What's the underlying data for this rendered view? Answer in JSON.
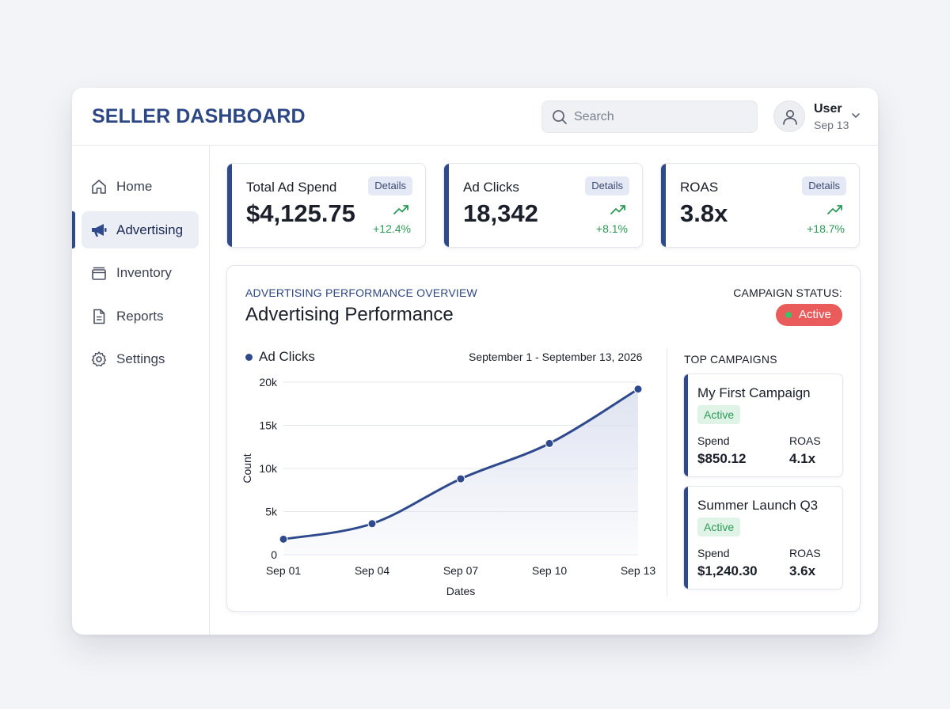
{
  "app": {
    "title": "SELLER DASHBOARD"
  },
  "search": {
    "placeholder": "Search",
    "icon": "search-icon"
  },
  "user": {
    "name": "User",
    "date": "Sep 13",
    "icon": "user-icon"
  },
  "sidebar": {
    "items": [
      {
        "label": "Home",
        "icon": "home-icon",
        "active": false
      },
      {
        "label": "Advertising",
        "icon": "megaphone-icon",
        "active": true
      },
      {
        "label": "Inventory",
        "icon": "inventory-icon",
        "active": false
      },
      {
        "label": "Reports",
        "icon": "document-icon",
        "active": false
      },
      {
        "label": "Settings",
        "icon": "gear-icon",
        "active": false
      }
    ]
  },
  "stats": [
    {
      "label": "Total Ad Spend",
      "value": "$4,125.75",
      "details": "Details",
      "change": "+12.4%"
    },
    {
      "label": "Ad Clicks",
      "value": "18,342",
      "details": "Details",
      "change": "+8.1%"
    },
    {
      "label": "ROAS",
      "value": "3.8x",
      "details": "Details",
      "change": "+18.7%"
    }
  ],
  "performance": {
    "overline": "ADVERTISING PERFORMANCE OVERVIEW",
    "title": "Advertising Performance",
    "status_label": "CAMPAIGN STATUS:",
    "status_value": "Active",
    "date_range": "September 1 - September 13, 2026"
  },
  "chart_data": {
    "type": "area",
    "x": [
      "Sep 01",
      "Sep 04",
      "Sep 07",
      "Sep 10",
      "Sep 13"
    ],
    "series": [
      {
        "name": "Ad Clicks",
        "values": [
          1800,
          3600,
          8800,
          12900,
          19200
        ]
      }
    ],
    "xlabel": "Dates",
    "ylabel": "Count",
    "yticks": [
      "0",
      "5k",
      "10k",
      "15k",
      "20k"
    ],
    "ylim": [
      0,
      20000
    ],
    "grid": true,
    "legend": "top-left"
  },
  "campaigns": {
    "title": "TOP CAMPAIGNS",
    "items": [
      {
        "name": "My First Campaign",
        "status": "Active",
        "spend_label": "Spend",
        "spend": "$850.12",
        "roas_label": "ROAS",
        "roas": "4.1x"
      },
      {
        "name": "Summer Launch Q3",
        "status": "Active",
        "spend_label": "Spend",
        "spend": "$1,240.30",
        "roas_label": "ROAS",
        "roas": "3.6x"
      }
    ]
  },
  "colors": {
    "brand": "#2e4a8c",
    "positive": "#2b9a55",
    "status_active_pill": "#ea5b5b",
    "area_fill": "#dde2f0"
  }
}
